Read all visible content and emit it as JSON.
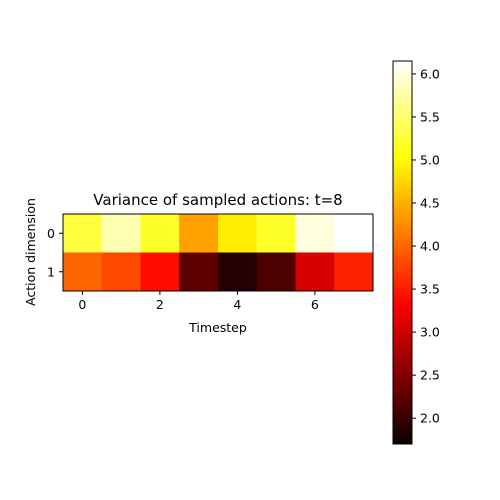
{
  "chart_data": {
    "type": "heatmap",
    "title": "Variance of sampled actions: t=8",
    "xlabel": "Timestep",
    "ylabel": "Action dimension",
    "x": [
      0,
      1,
      2,
      3,
      4,
      5,
      6,
      7
    ],
    "y": [
      0,
      1
    ],
    "x_ticks": [
      "0",
      "2",
      "4",
      "6"
    ],
    "x_tick_values": [
      0,
      2,
      4,
      6
    ],
    "y_ticks": [
      "0",
      "1"
    ],
    "y_tick_values": [
      0,
      1
    ],
    "values": [
      [
        5.3,
        5.8,
        5.2,
        4.4,
        4.9,
        5.2,
        6.0,
        6.15
      ],
      [
        4.0,
        3.8,
        3.4,
        2.1,
        1.75,
        2.0,
        2.9,
        3.55
      ]
    ],
    "colormap": "hot",
    "colorbar": {
      "vmin": 1.7,
      "vmax": 6.15,
      "ticks": [
        "2.0",
        "2.5",
        "3.0",
        "3.5",
        "4.0",
        "4.5",
        "5.0",
        "5.5",
        "6.0"
      ],
      "tick_values": [
        2.0,
        2.5,
        3.0,
        3.5,
        4.0,
        4.5,
        5.0,
        5.5,
        6.0
      ],
      "placement": "right"
    }
  }
}
